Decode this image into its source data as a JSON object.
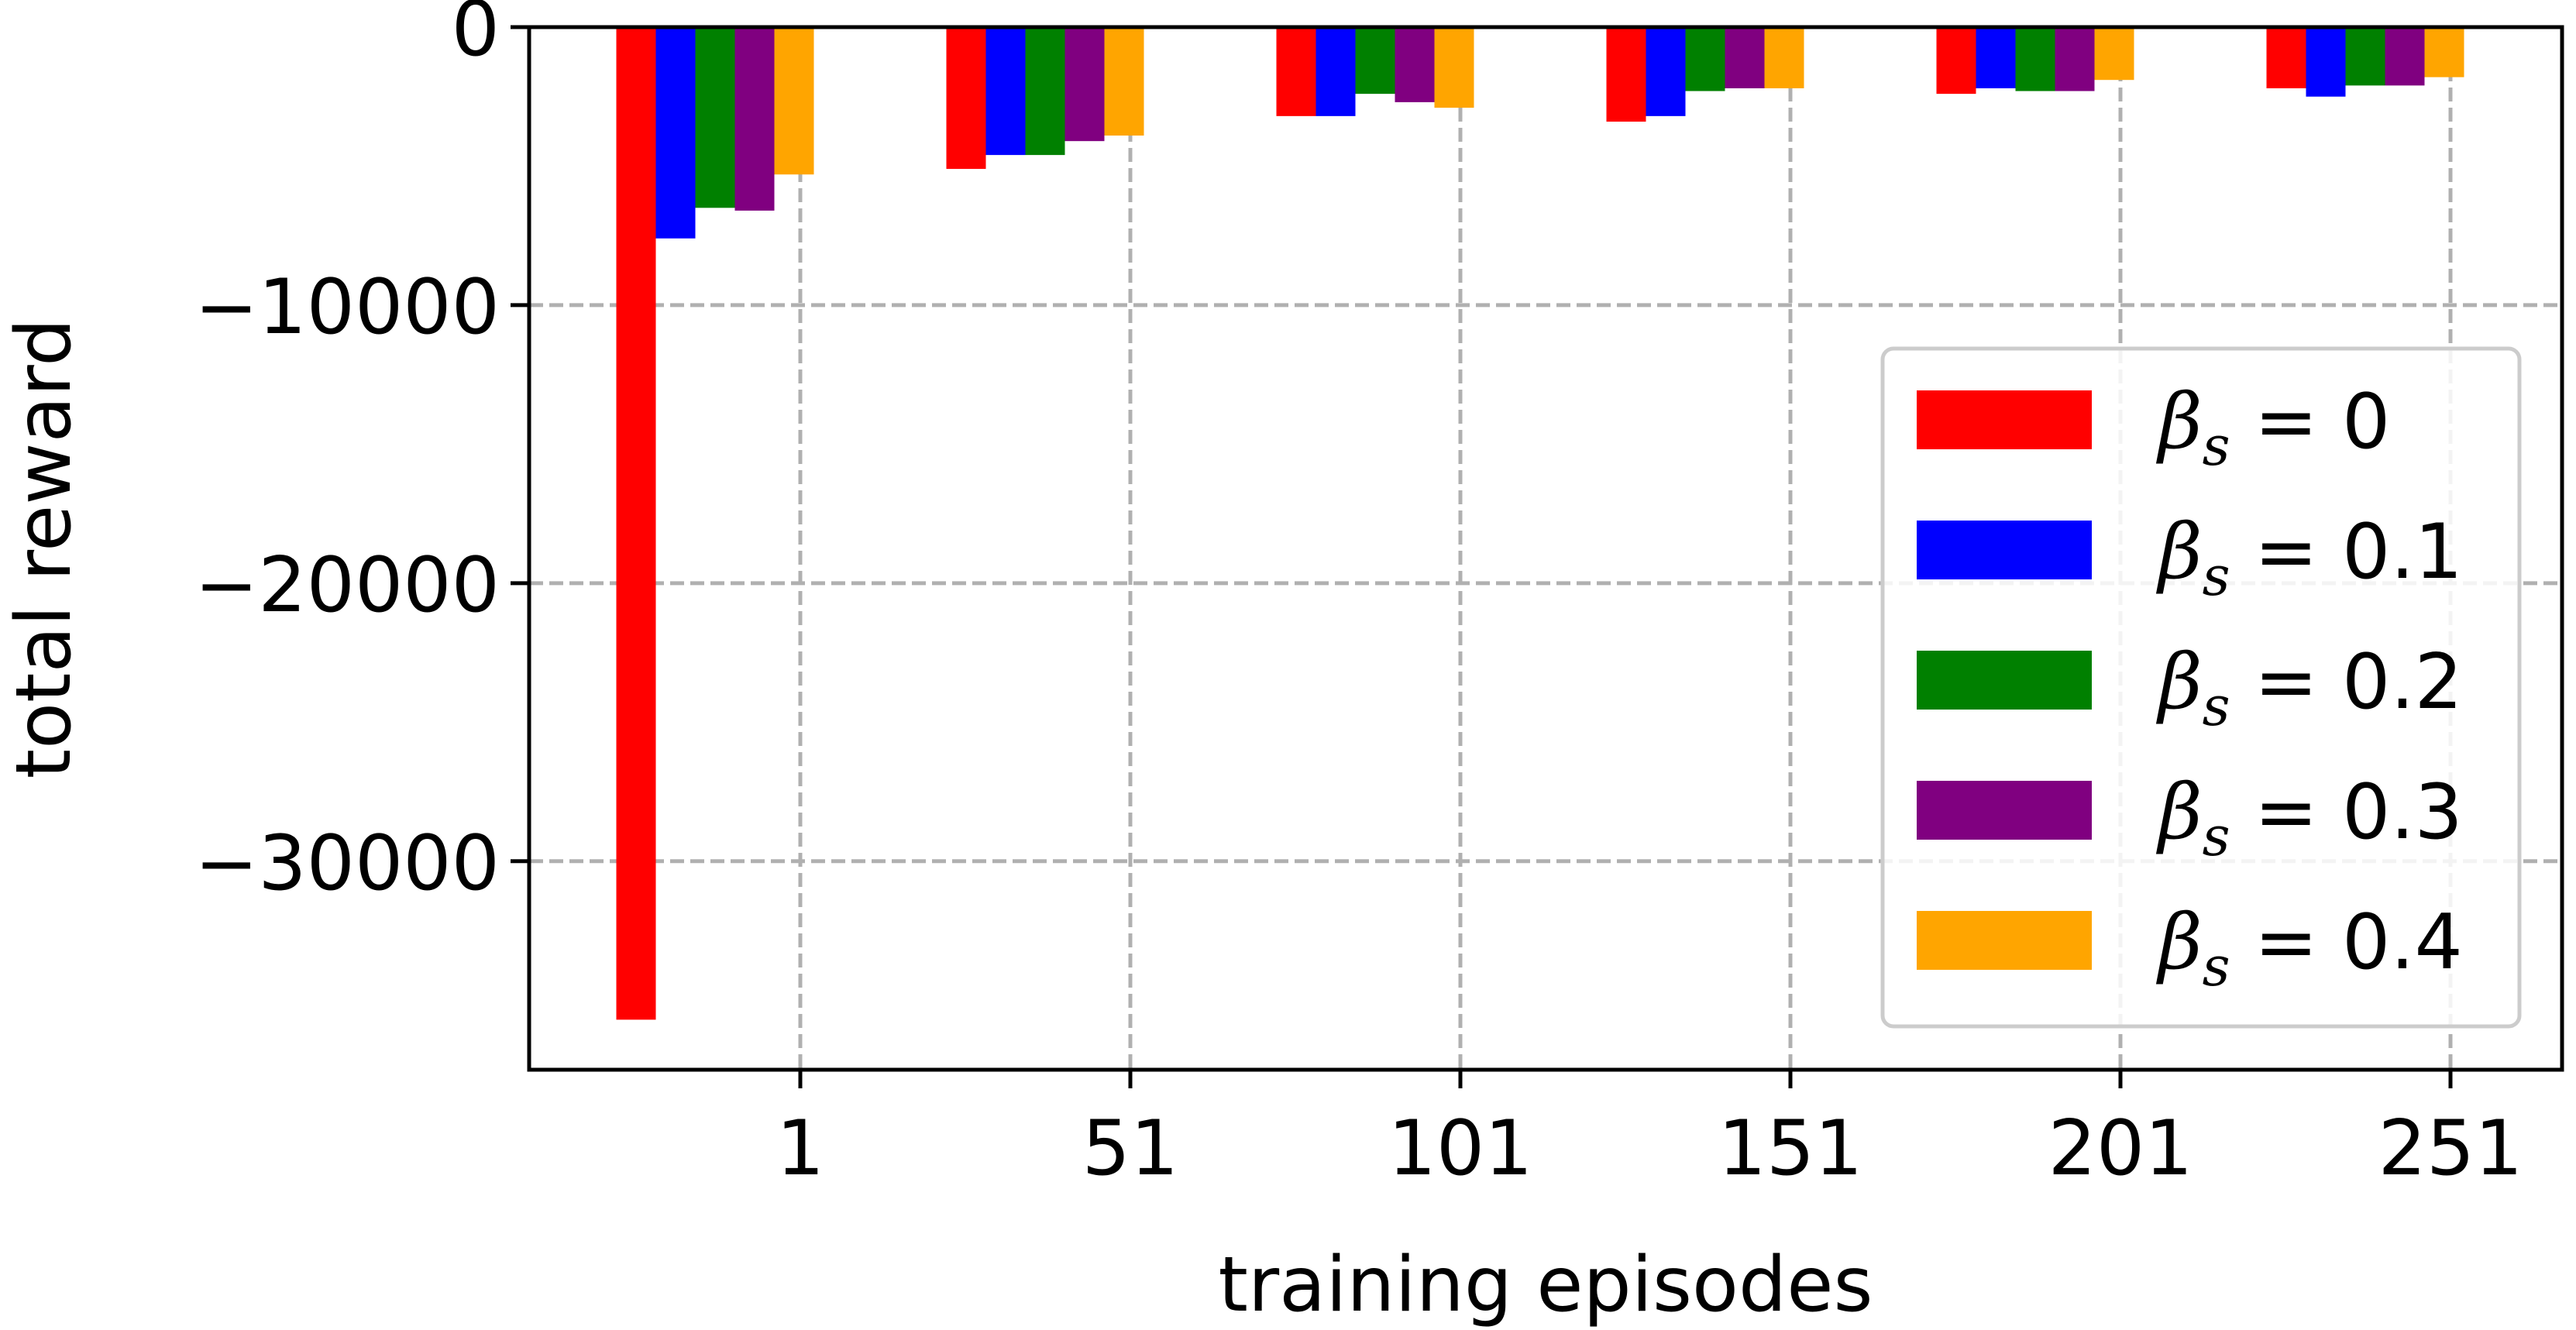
{
  "chart_data": {
    "type": "bar",
    "xlabel": "training episodes",
    "ylabel": "total reward",
    "categories": [
      "1",
      "51",
      "101",
      "151",
      "201",
      "251"
    ],
    "x_ticks": [
      "1",
      "51",
      "101",
      "151",
      "201",
      "251"
    ],
    "y_ticks": [
      {
        "value": 0,
        "label": "0"
      },
      {
        "value": -10000,
        "label": "−10000"
      },
      {
        "value": -20000,
        "label": "−20000"
      },
      {
        "value": -30000,
        "label": "−30000"
      }
    ],
    "ylim": [
      -37500,
      0
    ],
    "grid": true,
    "legend_position": "right",
    "series": [
      {
        "name": "βs = 0",
        "color": "#ff0000",
        "values": [
          -35700,
          -5100,
          -3200,
          -3400,
          -2400,
          -2200
        ]
      },
      {
        "name": "βs = 0.1",
        "color": "#0000ff",
        "values": [
          -7600,
          -4600,
          -3200,
          -3200,
          -2200,
          -2500
        ]
      },
      {
        "name": "βs = 0.2",
        "color": "#008000",
        "values": [
          -6500,
          -4600,
          -2400,
          -2300,
          -2300,
          -2100
        ]
      },
      {
        "name": "βs = 0.3",
        "color": "#800080",
        "values": [
          -6600,
          -4100,
          -2700,
          -2200,
          -2300,
          -2100
        ]
      },
      {
        "name": "βs = 0.4",
        "color": "#ffa500",
        "values": [
          -5300,
          -3900,
          -2900,
          -2200,
          -1900,
          -1800
        ]
      }
    ],
    "legend": [
      {
        "sym": "β",
        "sub": "s",
        "rest": " = 0"
      },
      {
        "sym": "β",
        "sub": "s",
        "rest": " = 0.1"
      },
      {
        "sym": "β",
        "sub": "s",
        "rest": " = 0.2"
      },
      {
        "sym": "β",
        "sub": "s",
        "rest": " = 0.3"
      },
      {
        "sym": "β",
        "sub": "s",
        "rest": " = 0.4"
      }
    ]
  }
}
